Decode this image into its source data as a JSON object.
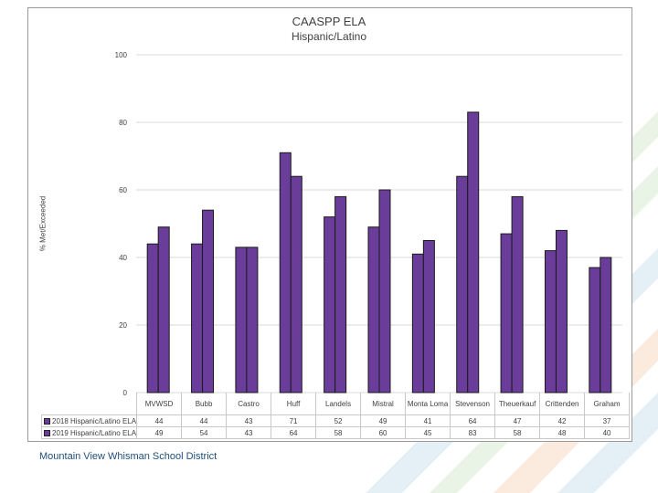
{
  "chart_data": {
    "type": "bar",
    "title": "CAASPP ELA",
    "subtitle": "Hispanic/Latino",
    "xlabel": "",
    "ylabel": "% Met/Exceeded",
    "ylim": [
      0,
      100
    ],
    "yticks": [
      0,
      20,
      40,
      60,
      80,
      100
    ],
    "grid": true,
    "categories": [
      "MVWSD",
      "Bubb",
      "Castro",
      "Huff",
      "Landels",
      "Mistral",
      "Monta Loma",
      "Stevenson",
      "Theuerkauf",
      "Crittenden",
      "Graham"
    ],
    "series": [
      {
        "name": "2018 Hispanic/Latino ELA",
        "values": [
          44,
          44,
          43,
          71,
          52,
          49,
          41,
          64,
          47,
          42,
          37
        ]
      },
      {
        "name": "2019 Hispanic/Latino ELA",
        "values": [
          49,
          54,
          43,
          64,
          58,
          60,
          45,
          83,
          58,
          48,
          40
        ]
      }
    ],
    "legend": "table-below"
  },
  "colors": {
    "bar": "#6a3d9a",
    "bar_stroke": "#1a1a1a",
    "grid": "#d9d9d9",
    "footer": "#1f4e79"
  },
  "footer": {
    "text": "Mountain View Whisman School District"
  }
}
